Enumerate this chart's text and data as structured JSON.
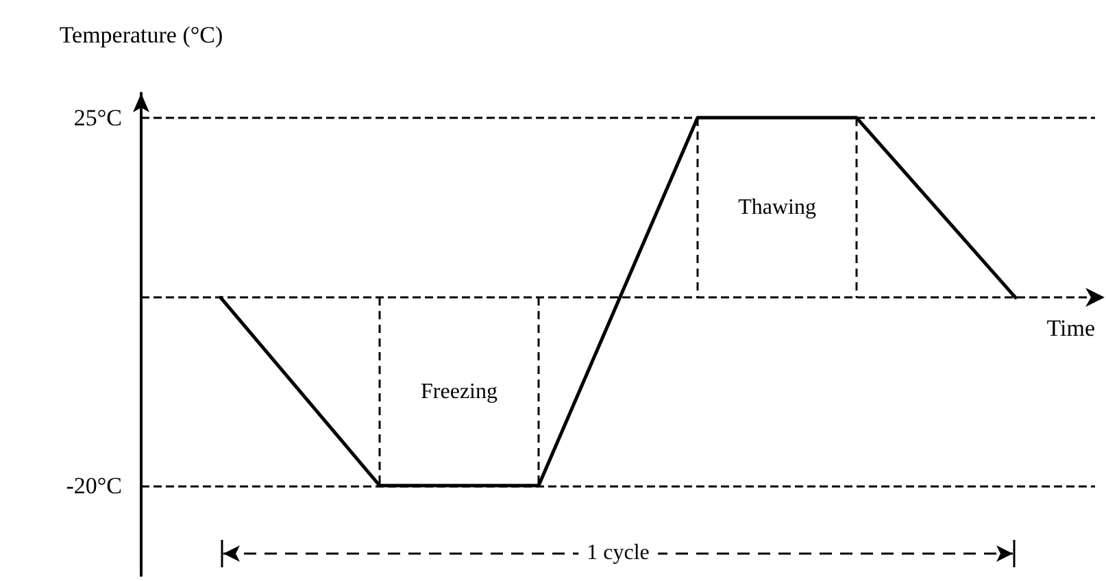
{
  "chart_data": {
    "type": "line",
    "ylabel": "Temperature (°C)",
    "xlabel": "Time",
    "categories": [
      null,
      null,
      null,
      null,
      null,
      null
    ],
    "series": [
      {
        "color": "#000000",
        "values": [
          3,
          -20,
          -20,
          25,
          25,
          3
        ]
      }
    ],
    "ylim": [
      -31,
      28
    ],
    "yticks": [
      {
        "value": 25,
        "label": "25°C"
      },
      {
        "value": -20,
        "label": "-20°C"
      }
    ],
    "grid": "y",
    "marker": "none",
    "line_style": "solid",
    "tick_labels": "y",
    "ref_lines": [
      {
        "axis": "y",
        "value": 3,
        "line_style": "dashed"
      }
    ],
    "annotations": [
      "Freezing",
      "Thawing",
      "1 cycle"
    ]
  }
}
